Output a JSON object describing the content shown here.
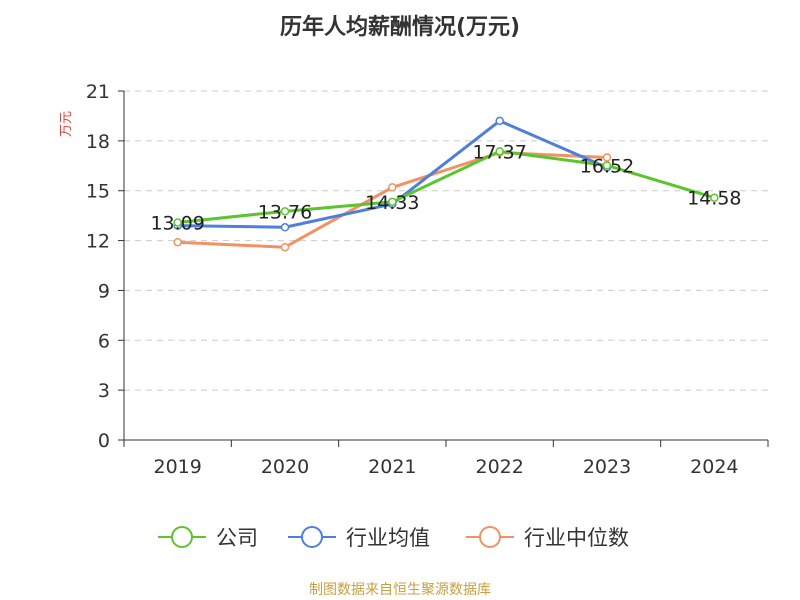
{
  "chart_data": {
    "type": "line",
    "title": "历年人均薪酬情况(万元)",
    "ylabel": "万元",
    "categories": [
      "2019",
      "2020",
      "2021",
      "2022",
      "2023",
      "2024"
    ],
    "ylim": [
      0,
      21
    ],
    "yticks": [
      0,
      3,
      6,
      9,
      12,
      15,
      18,
      21
    ],
    "grid": true,
    "legend_position": "bottom",
    "series": [
      {
        "name": "公司",
        "color": "#5cc42c",
        "values": [
          13.09,
          13.76,
          14.33,
          17.37,
          16.52,
          14.58
        ],
        "data_labels": [
          "13.09",
          "13.76",
          "14.33",
          "17.37",
          "16.52",
          "14.58"
        ]
      },
      {
        "name": "行业均值",
        "color": "#4e7fdc",
        "values": [
          12.9,
          12.8,
          14.2,
          19.2,
          16.4,
          null
        ]
      },
      {
        "name": "行业中位数",
        "color": "#f49164",
        "values": [
          11.9,
          11.6,
          15.2,
          17.3,
          17.0,
          null
        ]
      }
    ],
    "source": "制图数据来自恒生聚源数据库"
  }
}
